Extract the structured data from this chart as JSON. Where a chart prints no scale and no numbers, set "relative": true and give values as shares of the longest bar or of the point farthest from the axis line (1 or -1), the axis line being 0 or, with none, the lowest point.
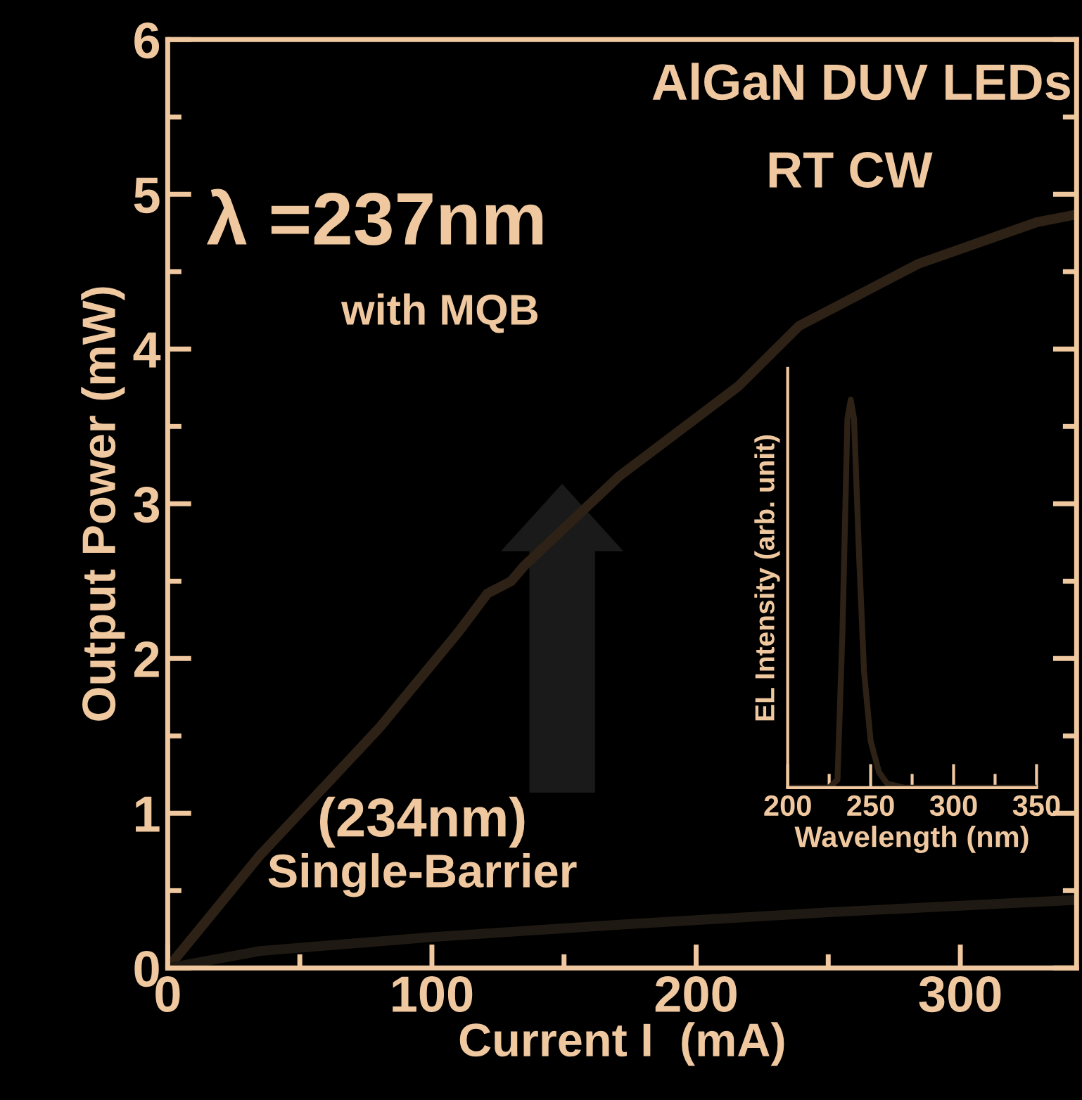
{
  "chart_data": [
    {
      "type": "line",
      "title": "AlGaN DUV LEDs",
      "xlabel": "Current I  (mA)",
      "ylabel": "Output Power (mW)",
      "xlim": [
        0,
        344
      ],
      "xticks": [
        0,
        {
          "value": 50,
          "label": null
        },
        100,
        {
          "value": 150,
          "label": null
        },
        200,
        {
          "value": 250,
          "label": null
        },
        300
      ],
      "ylim": [
        0,
        6
      ],
      "yticks": [
        0,
        {
          "value": 0.5,
          "label": null
        },
        1,
        {
          "value": 1.5,
          "label": null
        },
        2,
        {
          "value": 2.5,
          "label": null
        },
        3,
        {
          "value": 3.5,
          "label": null
        },
        4,
        {
          "value": 4.5,
          "label": null
        },
        5,
        {
          "value": 5.5,
          "label": null
        },
        6
      ],
      "grid": false,
      "legend": false,
      "marker": "none",
      "line_style": "solid",
      "annotations": [
        "RT CW",
        "λ =237nm",
        "(234nm)",
        "with MQB",
        "Single-Barrier"
      ],
      "series": [
        {
          "color": "#2e2216",
          "x": [
            0,
            35,
            80,
            110,
            121,
            130,
            135,
            171,
            216,
            239,
            284,
            329,
            344
          ],
          "values": [
            0,
            0.73,
            1.55,
            2.17,
            2.42,
            2.5,
            2.6,
            3.18,
            3.76,
            4.15,
            4.55,
            4.82,
            4.87
          ]
        },
        {
          "color": "#1e1912",
          "x": [
            0,
            35,
            100,
            171,
            250,
            344
          ],
          "values": [
            0,
            0.11,
            0.2,
            0.28,
            0.36,
            0.44
          ]
        }
      ]
    },
    {
      "type": "line",
      "relative": true,
      "xlabel": "Wavelength (nm)",
      "ylabel": "EL Intensity (arb. unit)",
      "tick_labels": "x",
      "xlim": [
        200,
        350
      ],
      "xticks": [
        200,
        {
          "value": 225,
          "label": null
        },
        250,
        {
          "value": 275,
          "label": null
        },
        300,
        {
          "value": 325,
          "label": null
        },
        350
      ],
      "grid": false,
      "legend": false,
      "marker": "none",
      "line_style": "solid",
      "series": [
        {
          "color": "#2e2216",
          "x": [
            200,
            225,
            230,
            233,
            236,
            238,
            240,
            243,
            246,
            250,
            255,
            260,
            270,
            350
          ],
          "values": [
            0,
            0,
            0.02,
            0.4,
            0.95,
            1,
            0.95,
            0.6,
            0.3,
            0.12,
            0.04,
            0.01,
            0,
            0
          ]
        }
      ]
    }
  ]
}
